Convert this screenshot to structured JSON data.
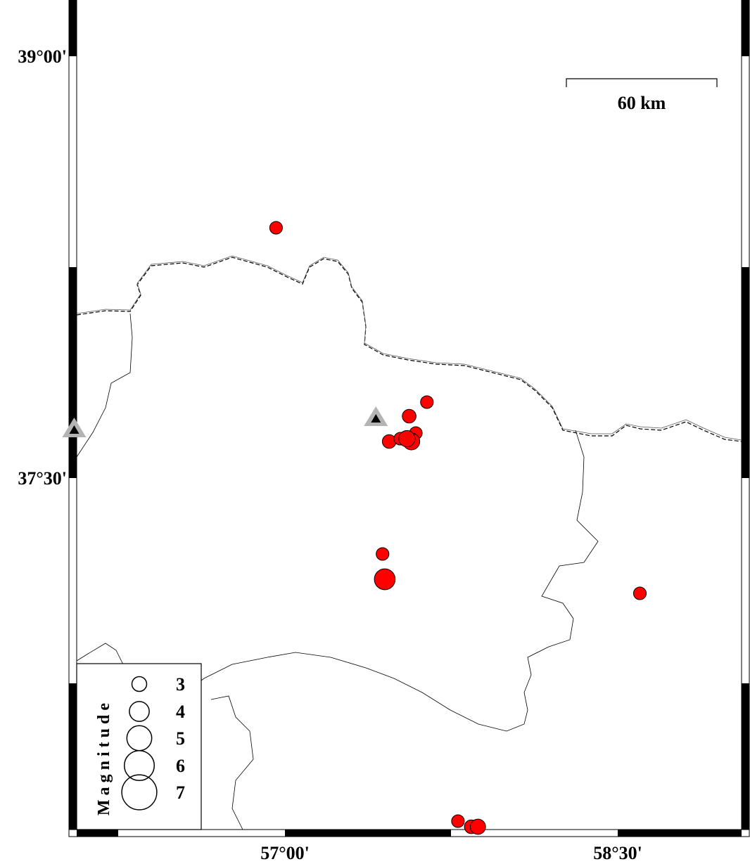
{
  "map": {
    "lat_labels": [
      "39°00'",
      "37°30'"
    ],
    "lon_labels": [
      "57°00'",
      "58°30'"
    ],
    "scale_bar": {
      "label": "60 km"
    },
    "legend": {
      "title": "Magnitude",
      "entries": [
        "3",
        "4",
        "5",
        "6",
        "7"
      ]
    },
    "colors": {
      "event": "#ff0000",
      "station_outer": "#b4b4b4",
      "station_inner": "#000000"
    },
    "stations": [
      {
        "lon": 57.41,
        "lat": 37.71
      },
      {
        "lon": 56.05,
        "lat": 37.67
      }
    ],
    "events": [
      {
        "lon": 56.96,
        "lat": 38.39,
        "mag": 2.6
      },
      {
        "lon": 57.64,
        "lat": 37.77,
        "mag": 2.6
      },
      {
        "lon": 57.56,
        "lat": 37.72,
        "mag": 2.8
      },
      {
        "lon": 57.59,
        "lat": 37.66,
        "mag": 2.6
      },
      {
        "lon": 57.47,
        "lat": 37.63,
        "mag": 2.8
      },
      {
        "lon": 57.52,
        "lat": 37.64,
        "mag": 2.6
      },
      {
        "lon": 57.57,
        "lat": 37.63,
        "mag": 3.4
      },
      {
        "lon": 57.55,
        "lat": 37.64,
        "mag": 3.3
      },
      {
        "lon": 57.44,
        "lat": 37.23,
        "mag": 2.6
      },
      {
        "lon": 57.45,
        "lat": 37.14,
        "mag": 4.2
      },
      {
        "lon": 58.6,
        "lat": 37.09,
        "mag": 2.6
      },
      {
        "lon": 57.78,
        "lat": 36.28,
        "mag": 2.6
      },
      {
        "lon": 57.84,
        "lat": 36.26,
        "mag": 2.8
      },
      {
        "lon": 57.87,
        "lat": 36.26,
        "mag": 3.1
      }
    ]
  }
}
